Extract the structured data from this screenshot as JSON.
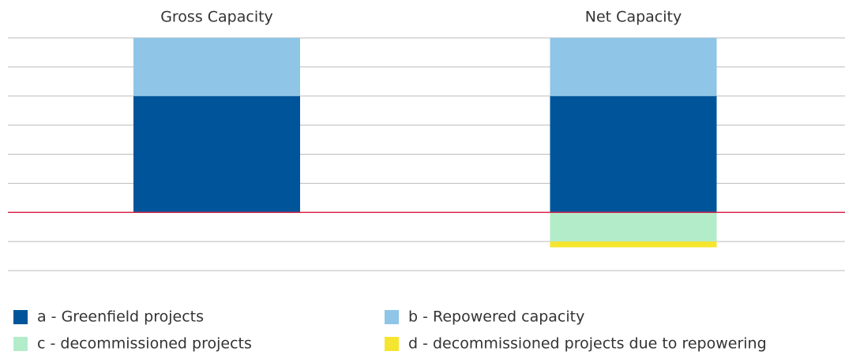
{
  "chart_data": {
    "type": "stacked_bar",
    "categories": [
      "Gross Capacity",
      "Net Capacity"
    ],
    "series": [
      {
        "name": "a - Greenfield projects",
        "color": "#00559a",
        "values": [
          4,
          4
        ]
      },
      {
        "name": "b - Repowered capacity",
        "color": "#8fc5e6",
        "values": [
          2,
          2
        ]
      },
      {
        "name": "c - decommissioned projects",
        "color": "#b3ecc9",
        "values": [
          0,
          -1
        ]
      },
      {
        "name": "d - decommissioned projects due to repowering",
        "color": "#f5e52e",
        "values": [
          0,
          -0.2
        ]
      }
    ],
    "ylim": [
      -2,
      6
    ],
    "yticks": [
      -2,
      -1,
      0,
      1,
      2,
      3,
      4,
      5,
      6
    ],
    "grid": true,
    "zero_line_color": "#d7294a",
    "legend": "bottom"
  }
}
